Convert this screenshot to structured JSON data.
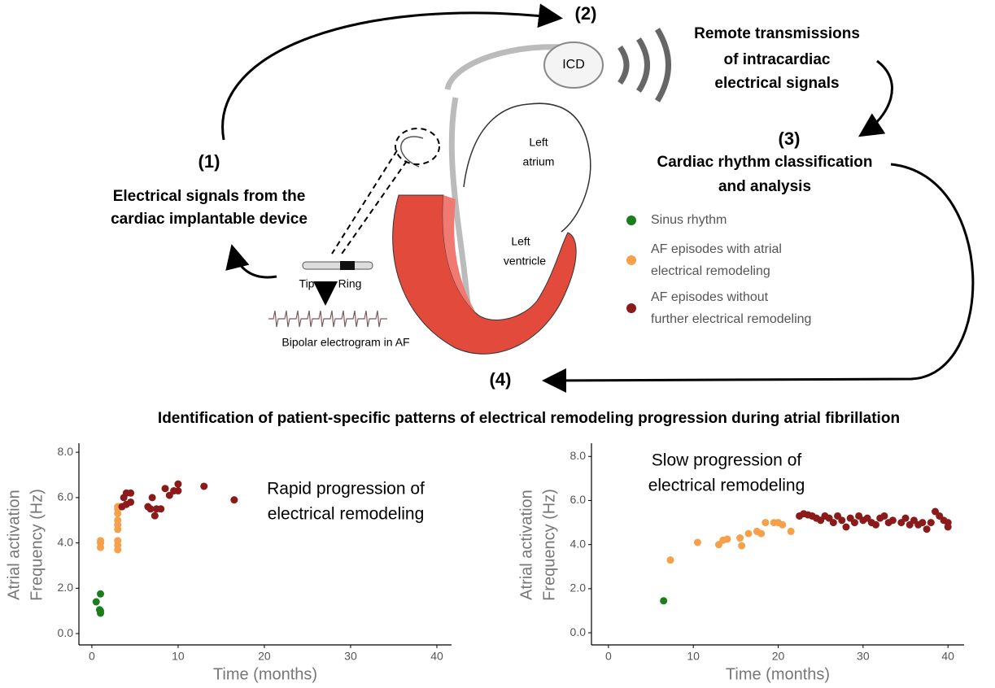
{
  "step1": {
    "number": "(1)",
    "lines": [
      "Electrical signals from the",
      "cardiac implantable device"
    ]
  },
  "step2": {
    "number": "(2)",
    "device": "ICD",
    "lines": [
      "Remote transmissions",
      "of intracardiac",
      "electrical signals"
    ]
  },
  "step3": {
    "number": "(3)",
    "lines": [
      "Cardiac rhythm classification",
      "and analysis"
    ],
    "legend": [
      {
        "color": "#1a7f1a",
        "lines": [
          "Sinus rhythm"
        ]
      },
      {
        "color": "#f5a04a",
        "lines": [
          "AF episodes with atrial",
          "electrical remodeling"
        ]
      },
      {
        "color": "#8b1a1a",
        "lines": [
          "AF episodes without",
          "further electrical remodeling"
        ]
      }
    ]
  },
  "step4": {
    "number": "(4)",
    "title": "Identification of patient-specific patterns of electrical remodeling progression during atrial fibrillation"
  },
  "heart": {
    "left_atrium": [
      "Left",
      "atrium"
    ],
    "left_ventricle": [
      "Left",
      "ventricle"
    ],
    "tip": "Tip",
    "ring": "Ring",
    "electrogram": "Bipolar electrogram in AF"
  },
  "chart_data": [
    {
      "type": "scatter",
      "xlabel": "Time (months)",
      "ylabel": [
        "Atrial activation",
        "Frequency (Hz)"
      ],
      "annotation": [
        "Rapid progression of",
        "electrical remodeling"
      ],
      "xlim": [
        -1.5,
        41.7
      ],
      "ylim": [
        -0.5,
        8.4
      ],
      "xticks": [
        0,
        10,
        20,
        30,
        40
      ],
      "yticks": [
        {
          "value": 0,
          "label": "0.0"
        },
        {
          "value": 2,
          "label": "2.0"
        },
        {
          "value": 4,
          "label": "4.0"
        },
        {
          "value": 6,
          "label": "6.0"
        },
        {
          "value": 8,
          "label": "8.0"
        }
      ],
      "series": [
        {
          "color": "#1a7f1a",
          "x": [
            0.5,
            1,
            1,
            1,
            0.9
          ],
          "values": [
            1.4,
            1.0,
            0.9,
            1.75,
            1.05
          ]
        },
        {
          "color": "#f5a04a",
          "x": [
            1,
            1,
            1,
            3,
            3,
            3,
            3,
            3,
            3,
            3,
            3,
            3,
            3.2
          ],
          "values": [
            4.0,
            3.8,
            4.1,
            3.7,
            3.9,
            4.1,
            4.6,
            4.8,
            5.0,
            5.3,
            5.5,
            5.6,
            5.6
          ]
        },
        {
          "color": "#8b1a1a",
          "x": [
            3.5,
            3.7,
            4,
            4.5,
            4,
            4.5,
            6.5,
            6.8,
            7,
            7.3,
            7.5,
            8,
            8.5,
            9,
            9.5,
            10,
            10,
            13,
            16.5
          ],
          "values": [
            5.6,
            6.0,
            6.2,
            6.2,
            5.7,
            5.8,
            5.6,
            5.5,
            6.0,
            5.2,
            5.5,
            5.5,
            6.4,
            6.1,
            6.3,
            6.6,
            6.3,
            6.5,
            5.9
          ]
        }
      ]
    },
    {
      "type": "scatter",
      "xlabel": "Time (months)",
      "ylabel": [
        "Atrial activation",
        "Frequency (Hz)"
      ],
      "annotation": [
        "Slow progression of",
        "electrical remodeling"
      ],
      "xlim": [
        -2.0,
        41.9
      ],
      "ylim": [
        -0.55,
        8.6
      ],
      "xticks": [
        0,
        10,
        20,
        30,
        40
      ],
      "yticks": [
        {
          "value": 0,
          "label": "0.0"
        },
        {
          "value": 2,
          "label": "2.0"
        },
        {
          "value": 4,
          "label": "4.0"
        },
        {
          "value": 6,
          "label": "6.0"
        },
        {
          "value": 8,
          "label": "8.0"
        }
      ],
      "series": [
        {
          "color": "#1a7f1a",
          "x": [
            6.5
          ],
          "values": [
            1.45
          ]
        },
        {
          "color": "#f5a04a",
          "x": [
            7.3,
            10.5,
            13,
            13.5,
            14,
            15.5,
            15.7,
            16.5,
            17.5,
            18,
            18.5,
            19.5,
            20,
            20.5,
            21.5
          ],
          "values": [
            3.3,
            4.1,
            4.0,
            4.2,
            4.25,
            4.3,
            3.95,
            4.5,
            4.6,
            4.5,
            5.0,
            5.0,
            5.0,
            4.9,
            4.6
          ]
        },
        {
          "color": "#8b1a1a",
          "x": [
            22.5,
            23,
            23.5,
            24,
            24.5,
            25,
            25.5,
            26,
            26.5,
            27,
            27.5,
            28,
            28.5,
            29,
            29.5,
            30,
            30.5,
            31,
            31.5,
            32,
            32.5,
            33,
            33.5,
            34.5,
            35,
            35.5,
            36,
            36.5,
            37,
            37.5,
            38,
            38.5,
            39,
            39.5,
            40,
            40
          ],
          "values": [
            5.3,
            5.4,
            5.35,
            5.3,
            5.2,
            5.1,
            5.3,
            5.2,
            5.0,
            5.3,
            5.1,
            4.8,
            5.2,
            5.0,
            5.3,
            5.1,
            5.2,
            5.0,
            4.9,
            5.2,
            5.3,
            5.0,
            5.1,
            5.0,
            5.2,
            4.9,
            5.1,
            4.9,
            5.0,
            4.7,
            5.0,
            5.5,
            5.3,
            5.1,
            5.0,
            4.8
          ]
        }
      ]
    }
  ]
}
